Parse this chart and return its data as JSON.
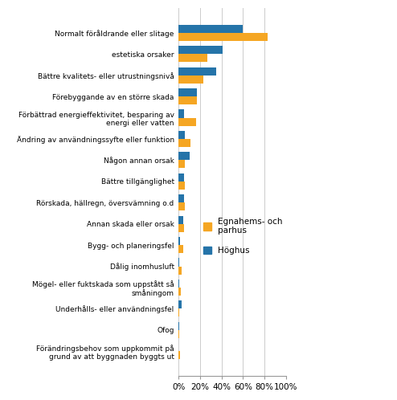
{
  "categories": [
    "Normalt föråldrande eller slitage",
    "estetiska orsaker",
    "Bättre kvalitets- eller utrustningsnivå",
    "Förebyggande av en större skada",
    "Förbättrad energieffektivitet, besparing av\nenergi eller vatten",
    "Ändring av användningssyfte eller funktion",
    "Någon annan orsak",
    "Bättre tillgänglighet",
    "Rörskada, hällregn, översvämning o.d",
    "Annan skada eller orsak",
    "Bygg- och planeringsfel",
    "Dålig inomhusluft",
    "Mögel- eller fuktskada som uppstått så\nsmåningom",
    "Underhålls- eller användningsfel",
    "Ofog",
    "Förändringsbehov som uppkommit på\ngrund av att byggnaden byggts ut"
  ],
  "egnahems_values": [
    83,
    27,
    23,
    17,
    16,
    11,
    6,
    6,
    6,
    5,
    4,
    3,
    2,
    0.5,
    0.5,
    1
  ],
  "hoghus_values": [
    60,
    41,
    35,
    17,
    5,
    6,
    10,
    5,
    5,
    4,
    1,
    0.5,
    0.5,
    3,
    0.5,
    0
  ],
  "color_egnahems": "#F5A623",
  "color_hoghus": "#2574A9",
  "legend_egnahems": "Egnahems- och\nparhus",
  "legend_hoghus": "Höghus",
  "xlim": [
    0,
    100
  ],
  "xtick_labels": [
    "0%",
    "20%",
    "40%",
    "60%",
    "80%",
    "100%"
  ],
  "xtick_values": [
    0,
    20,
    40,
    60,
    80,
    100
  ],
  "bar_height": 0.38,
  "figsize": [
    4.94,
    4.98
  ],
  "dpi": 100
}
